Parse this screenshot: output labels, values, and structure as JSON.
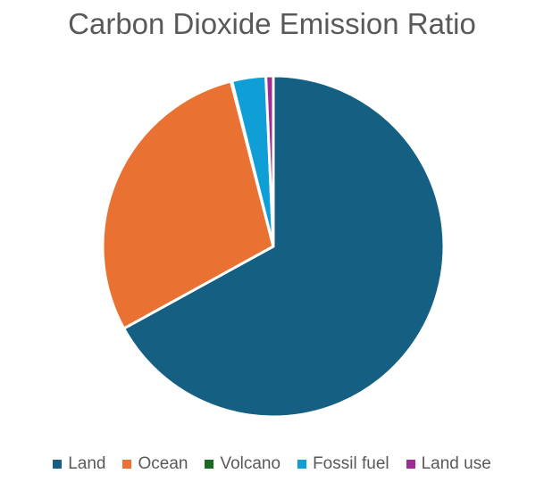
{
  "chart_data": {
    "type": "pie",
    "title": "Carbon Dioxide Emission Ratio",
    "categories": [
      "Land",
      "Ocean",
      "Volcano",
      "Fossil fuel",
      "Land use"
    ],
    "values": [
      67.0,
      29.0,
      0.1,
      3.2,
      0.7
    ],
    "unit": "percent",
    "colors": [
      "#156082",
      "#E97132",
      "#196B24",
      "#0F9ED5",
      "#A02B93"
    ],
    "legend_position": "bottom"
  }
}
